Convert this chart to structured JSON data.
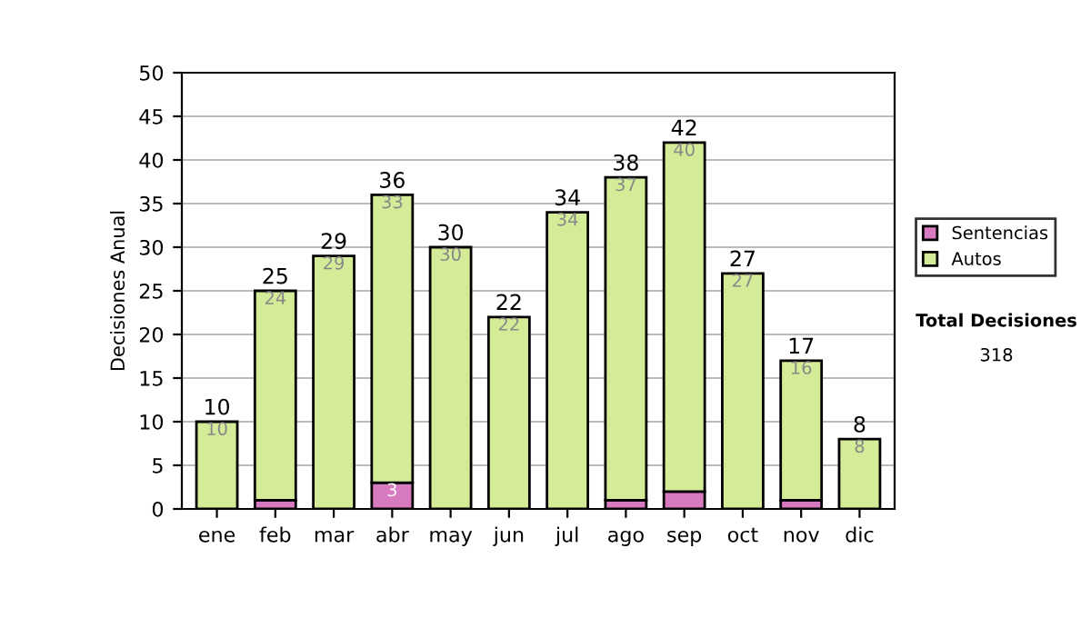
{
  "chart_data": {
    "type": "bar",
    "stacked": true,
    "ylabel": "Decisiones Anual",
    "categories": [
      "ene",
      "feb",
      "mar",
      "abr",
      "may",
      "jun",
      "jul",
      "ago",
      "sep",
      "oct",
      "nov",
      "dic"
    ],
    "series": [
      {
        "name": "Sentencias",
        "color": "#d87ac0",
        "values": [
          0,
          1,
          0,
          3,
          0,
          0,
          0,
          1,
          2,
          0,
          1,
          0
        ],
        "value_labels": [
          null,
          null,
          null,
          "3",
          null,
          null,
          null,
          null,
          null,
          null,
          null,
          null
        ]
      },
      {
        "name": "Autos",
        "color": "#d4eb98",
        "values": [
          10,
          24,
          29,
          33,
          30,
          22,
          34,
          37,
          40,
          27,
          16,
          8
        ],
        "value_labels": [
          "10",
          "24",
          "29",
          "33",
          "30",
          "22",
          "34",
          "37",
          "40",
          "27",
          "16",
          "8"
        ]
      }
    ],
    "totals": [
      "10",
      "25",
      "29",
      "36",
      "30",
      "22",
      "34",
      "38",
      "42",
      "27",
      "17",
      "8"
    ],
    "ylim": [
      0,
      50
    ],
    "yticks": [
      0,
      5,
      10,
      15,
      20,
      25,
      30,
      35,
      40,
      45,
      50
    ],
    "grid": "y",
    "legend": "right",
    "annotations": [
      "Total Decisiones",
      "318"
    ]
  }
}
